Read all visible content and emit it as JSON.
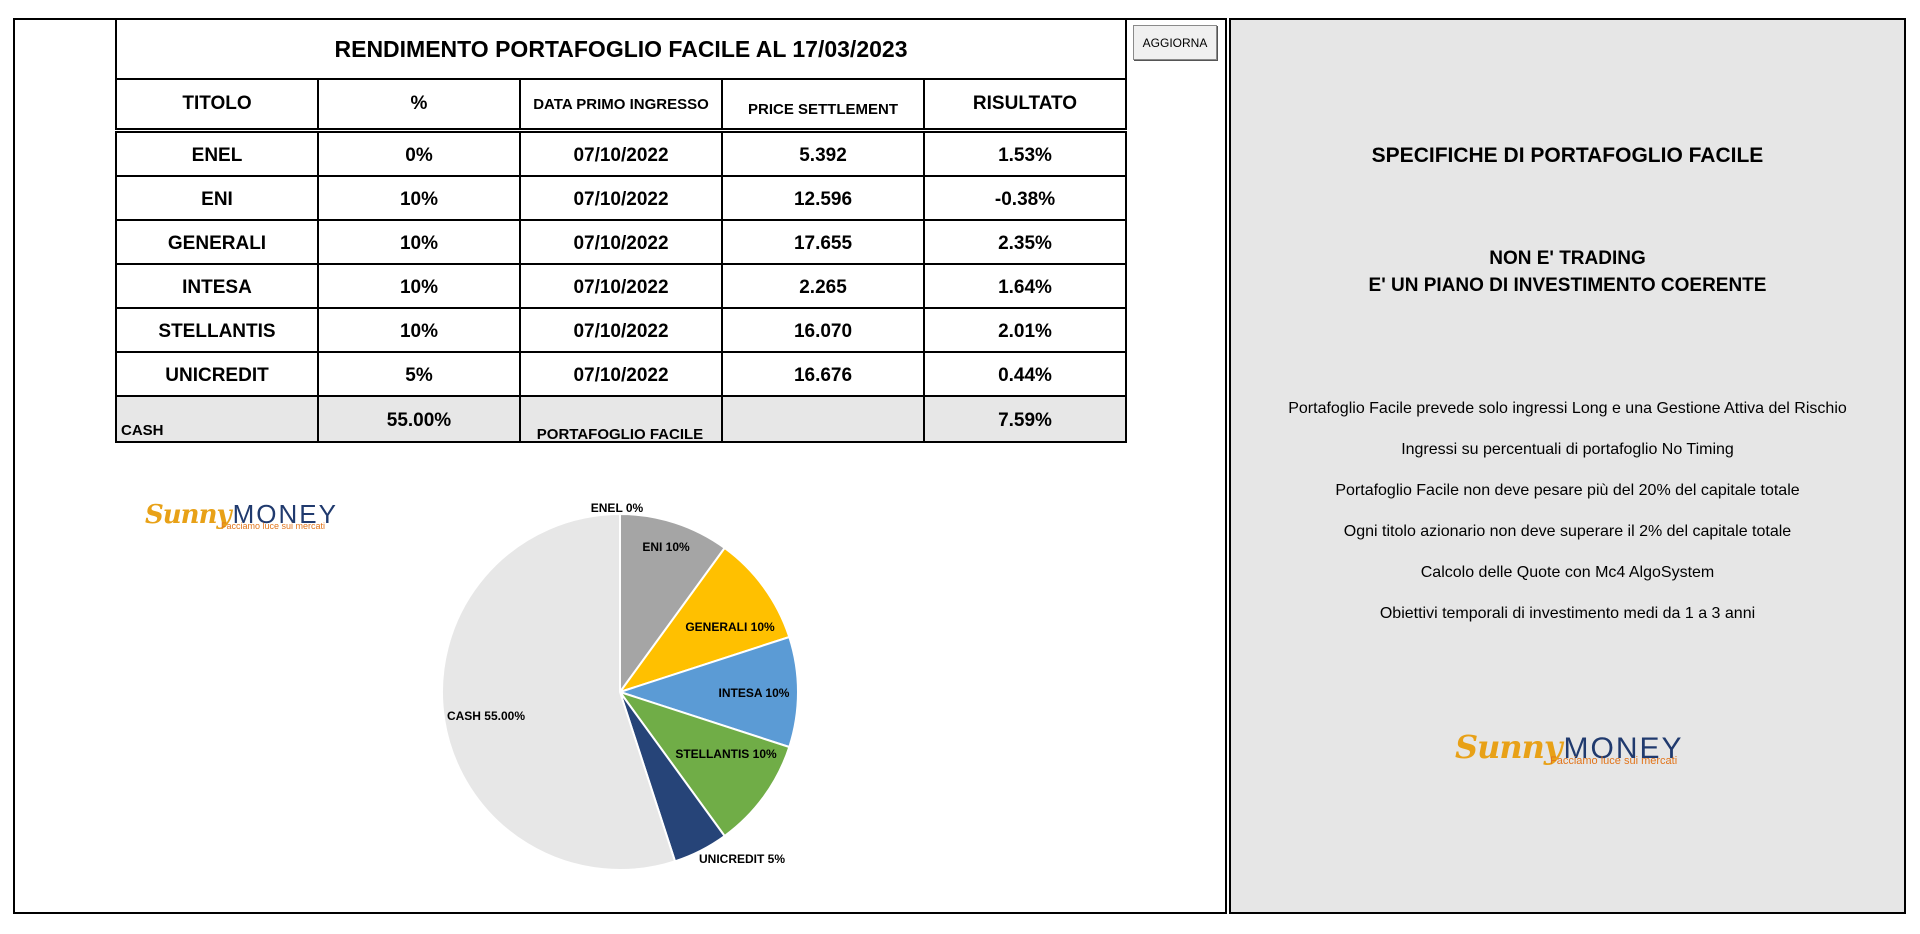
{
  "table": {
    "title": "RENDIMENTO PORTAFOGLIO FACILE AL 17/03/2023",
    "headers": [
      "TITOLO",
      "%",
      "DATA PRIMO INGRESSO",
      "PRICE SETTLEMENT",
      "RISULTATO"
    ],
    "rows": [
      {
        "titolo": "ENEL",
        "pct": "0%",
        "data": "07/10/2022",
        "price": "5.392",
        "risultato": "1.53%"
      },
      {
        "titolo": "ENI",
        "pct": "10%",
        "data": "07/10/2022",
        "price": "12.596",
        "risultato": "-0.38%"
      },
      {
        "titolo": "GENERALI",
        "pct": "10%",
        "data": "07/10/2022",
        "price": "17.655",
        "risultato": "2.35%"
      },
      {
        "titolo": "INTESA",
        "pct": "10%",
        "data": "07/10/2022",
        "price": "2.265",
        "risultato": "1.64%"
      },
      {
        "titolo": "STELLANTIS",
        "pct": "10%",
        "data": "07/10/2022",
        "price": "16.070",
        "risultato": "2.01%"
      },
      {
        "titolo": "UNICREDIT",
        "pct": "5%",
        "data": "07/10/2022",
        "price": "16.676",
        "risultato": "0.44%"
      }
    ],
    "cash": {
      "label": "CASH",
      "pct": "55.00%",
      "risultato": "7.59%"
    }
  },
  "refresh_button": {
    "label": "AGGIORNA"
  },
  "logo": {
    "sunny": "Sunny",
    "money": "MONEY",
    "tagline": "Facciamo luce sui mercati"
  },
  "chart_data": {
    "type": "pie",
    "title": "PORTAFOGLIO FACILE",
    "slices": [
      {
        "name": "ENEL",
        "label": "ENEL 0%",
        "value": 0,
        "color": "#ffffff"
      },
      {
        "name": "ENI",
        "label": "ENI 10%",
        "value": 10,
        "color": "#a5a5a5"
      },
      {
        "name": "GENERALI",
        "label": "GENERALI 10%",
        "value": 10,
        "color": "#ffc000"
      },
      {
        "name": "INTESA",
        "label": "INTESA  10%",
        "value": 10,
        "color": "#5b9bd5"
      },
      {
        "name": "STELLANTIS",
        "label": "STELLANTIS 10%",
        "value": 10,
        "color": "#70ad47"
      },
      {
        "name": "UNICREDIT",
        "label": "UNICREDIT 5%",
        "value": 5,
        "color": "#264478"
      },
      {
        "name": "CASH",
        "label": "CASH 55.00%",
        "value": 55,
        "color": "#e7e7e7"
      }
    ]
  },
  "specs": {
    "title": "SPECIFICHE DI PORTAFOGLIO FACILE",
    "notice_line1": "NON E' TRADING",
    "notice_line2": "E' UN PIANO DI INVESTIMENTO COERENTE",
    "items": [
      "Portafoglio Facile prevede solo ingressi Long e una Gestione Attiva del Rischio",
      "Ingressi su percentuali di portafoglio No Timing",
      "Portafoglio Facile non deve pesare più del 20% del capitale totale",
      "Ogni titolo azionario non deve superare il 2% del capitale totale",
      "Calcolo delle Quote con Mc4 AlgoSystem",
      "Obiettivi temporali di investimento medi da 1 a 3 anni"
    ]
  }
}
